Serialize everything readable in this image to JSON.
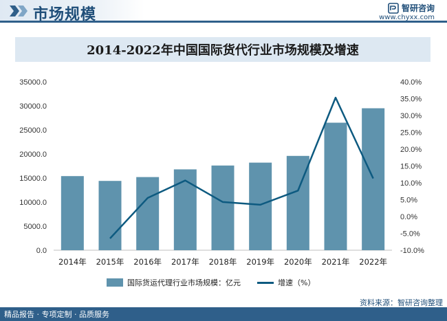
{
  "header": {
    "title": "市场规模",
    "brand_name": "智研咨询",
    "brand_url": "www.chyxx.com"
  },
  "legend": {
    "bar_label": "国际货运代理行业市场规模：亿元",
    "line_label": "增速（%）"
  },
  "footer": {
    "left_text": "精品报告 · 专项定制 · 品质服务",
    "source_text": "资料来源：智研咨询整理"
  },
  "colors": {
    "bar": "#5f93ad",
    "line": "#0d5a80",
    "header": "#2f5f8a",
    "title_band": "#dde8f2"
  },
  "chart_data": {
    "type": "bar",
    "title": "2014-2022年中国国际货代行业市场规模及增速",
    "categories": [
      "2014年",
      "2015年",
      "2016年",
      "2017年",
      "2018年",
      "2019年",
      "2020年",
      "2021年",
      "2022年"
    ],
    "series": [
      {
        "name": "国际货运代理行业市场规模：亿元",
        "type": "bar",
        "axis": "left",
        "values": [
          15400,
          14400,
          15200,
          16800,
          17600,
          18200,
          19600,
          26500,
          29500
        ]
      },
      {
        "name": "增速（%）",
        "type": "line",
        "axis": "right",
        "values": [
          null,
          -6.5,
          5.5,
          10.7,
          4.3,
          3.5,
          7.7,
          35.3,
          11.3
        ]
      }
    ],
    "y_left": {
      "range": [
        0,
        35000
      ],
      "ticks": [
        "0.0",
        "5000.0",
        "10000.0",
        "15000.0",
        "20000.0",
        "25000.0",
        "30000.0",
        "35000.0"
      ]
    },
    "y_right": {
      "range": [
        -10,
        40
      ],
      "ticks": [
        "-10.0%",
        "-5.0%",
        "0.0%",
        "5.0%",
        "10.0%",
        "15.0%",
        "20.0%",
        "25.0%",
        "30.0%",
        "35.0%",
        "40.0%"
      ]
    },
    "grid": false,
    "legend_position": "bottom"
  }
}
